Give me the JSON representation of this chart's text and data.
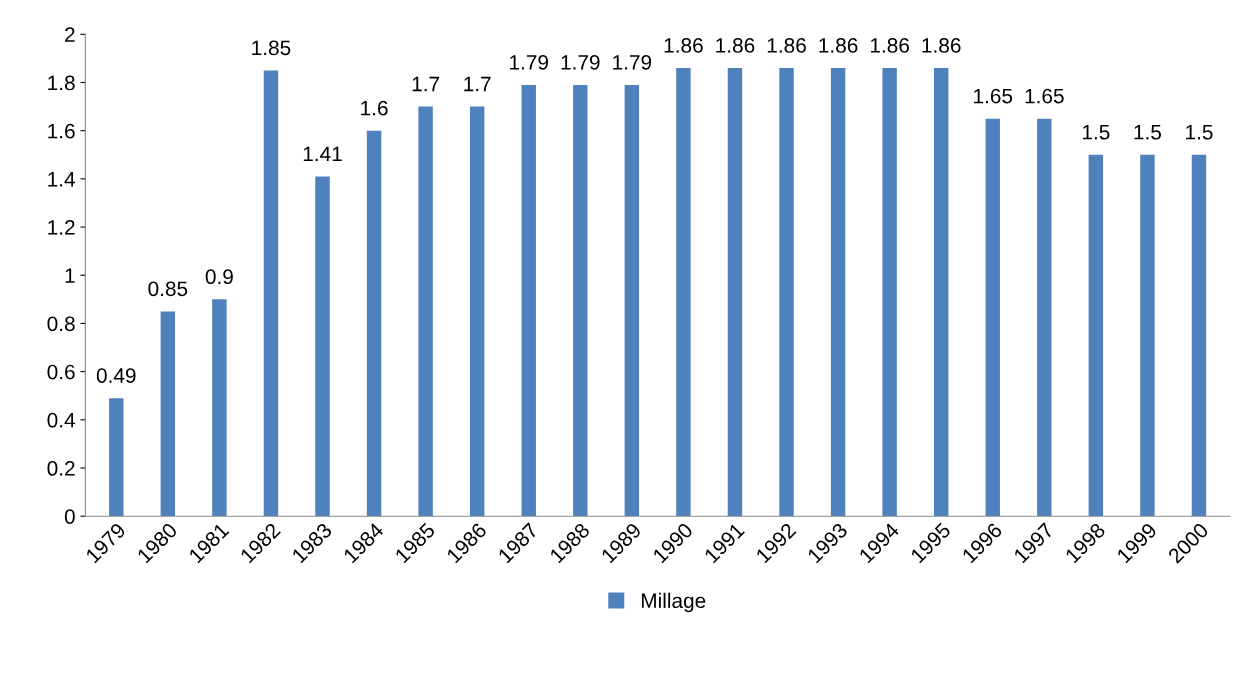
{
  "chart_data": {
    "type": "bar",
    "categories": [
      "1979",
      "1980",
      "1981",
      "1982",
      "1983",
      "1984",
      "1985",
      "1986",
      "1987",
      "1988",
      "1989",
      "1990",
      "1991",
      "1992",
      "1993",
      "1994",
      "1995",
      "1996",
      "1997",
      "1998",
      "1999",
      "2000"
    ],
    "series": [
      {
        "name": "Millage",
        "color": "#4f81bd",
        "values": [
          0.49,
          0.85,
          0.9,
          1.85,
          1.41,
          1.6,
          1.7,
          1.7,
          1.79,
          1.79,
          1.79,
          1.86,
          1.86,
          1.86,
          1.86,
          1.86,
          1.86,
          1.65,
          1.65,
          1.5,
          1.5,
          1.5
        ]
      }
    ],
    "ylim": [
      0,
      2
    ],
    "yticks": [
      0,
      0.2,
      0.4,
      0.6,
      0.8,
      1,
      1.2,
      1.4,
      1.6,
      1.8,
      2
    ],
    "grid": false,
    "legend": "bottom",
    "data_labels": true
  }
}
